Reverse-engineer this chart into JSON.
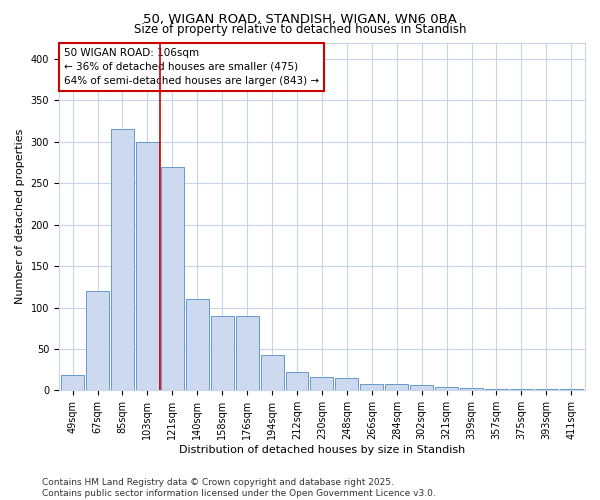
{
  "title": "50, WIGAN ROAD, STANDISH, WIGAN, WN6 0BA",
  "subtitle": "Size of property relative to detached houses in Standish",
  "xlabel": "Distribution of detached houses by size in Standish",
  "ylabel": "Number of detached properties",
  "categories": [
    "49sqm",
    "67sqm",
    "85sqm",
    "103sqm",
    "121sqm",
    "140sqm",
    "158sqm",
    "176sqm",
    "194sqm",
    "212sqm",
    "230sqm",
    "248sqm",
    "266sqm",
    "284sqm",
    "302sqm",
    "321sqm",
    "339sqm",
    "357sqm",
    "375sqm",
    "393sqm",
    "411sqm"
  ],
  "values": [
    18,
    120,
    315,
    300,
    270,
    110,
    90,
    90,
    43,
    22,
    16,
    15,
    8,
    8,
    7,
    4,
    3,
    2,
    2,
    2,
    2
  ],
  "bar_color": "#ccd9ee",
  "bar_edge_color": "#6699cc",
  "plot_bg_color": "#ffffff",
  "fig_bg_color": "#ffffff",
  "grid_color": "#c8d4e8",
  "vline_x": 3.5,
  "vline_color": "#cc0000",
  "annotation_line1": "50 WIGAN ROAD: 106sqm",
  "annotation_line2": "← 36% of detached houses are smaller (475)",
  "annotation_line3": "64% of semi-detached houses are larger (843) →",
  "annotation_box_facecolor": "#ffffff",
  "annotation_box_edge": "#cc0000",
  "ylim": [
    0,
    420
  ],
  "yticks": [
    0,
    50,
    100,
    150,
    200,
    250,
    300,
    350,
    400
  ],
  "footer_line1": "Contains HM Land Registry data © Crown copyright and database right 2025.",
  "footer_line2": "Contains public sector information licensed under the Open Government Licence v3.0.",
  "title_fontsize": 9.5,
  "subtitle_fontsize": 8.5,
  "axis_label_fontsize": 8,
  "tick_fontsize": 7,
  "annotation_fontsize": 7.5,
  "footer_fontsize": 6.5
}
